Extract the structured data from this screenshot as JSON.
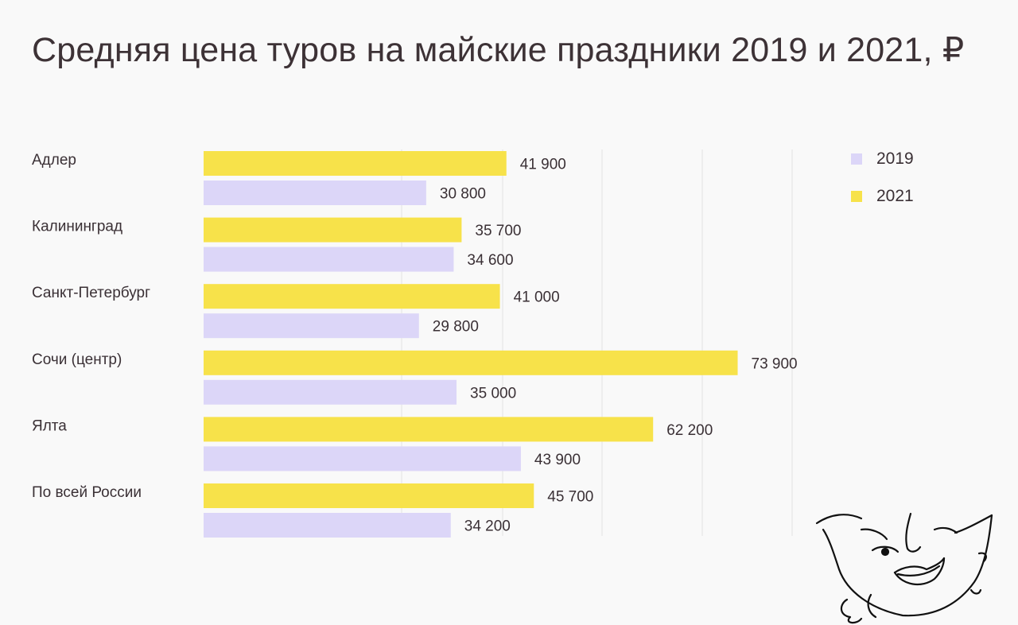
{
  "title": "Средняя цена туров на майские праздники 2019 и 2021, ₽",
  "chart_data": {
    "type": "bar",
    "orientation": "horizontal",
    "title": "Средняя цена туров на майские праздники 2019 и 2021, ₽",
    "categories": [
      "Адлер",
      "Калининград",
      "Санкт-Петербург",
      "Сочи (центр)",
      "Ялта",
      "По всей России"
    ],
    "series": [
      {
        "name": "2021",
        "color": "#f7e24a",
        "values": [
          41900,
          35700,
          41000,
          73900,
          62200,
          45700
        ],
        "labels": [
          "41 900",
          "35 700",
          "41 000",
          "73 900",
          "62 200",
          "45 700"
        ]
      },
      {
        "name": "2019",
        "color": "#dcd6f8",
        "values": [
          30800,
          34600,
          29800,
          35000,
          43900,
          34200
        ],
        "labels": [
          "30 800",
          "34 600",
          "29 800",
          "35 000",
          "43 900",
          "34 200"
        ]
      }
    ],
    "xlim": [
      0,
      92000
    ],
    "grid": true,
    "legend": {
      "position": "top-right",
      "items": [
        {
          "name": "2019",
          "color": "#dcd6f8"
        },
        {
          "name": "2021",
          "color": "#f7e24a"
        }
      ]
    }
  }
}
